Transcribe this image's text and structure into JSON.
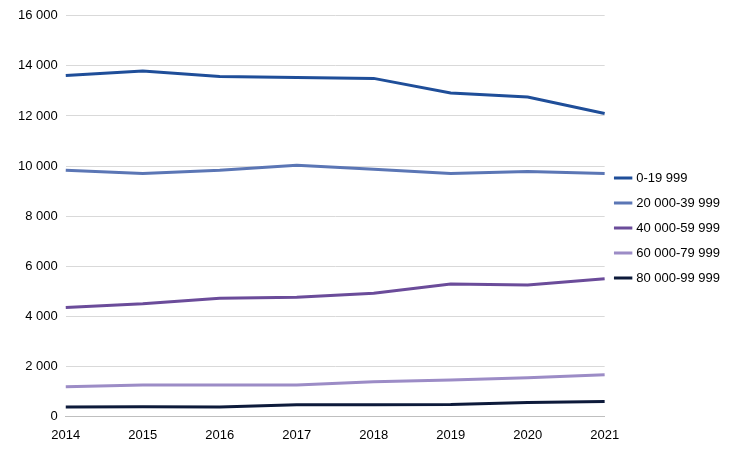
{
  "chart_data": {
    "type": "line",
    "categories": [
      "2014",
      "2015",
      "2016",
      "2017",
      "2018",
      "2019",
      "2020",
      "2021"
    ],
    "series": [
      {
        "name": "0-19 999",
        "color": "#1f4e99",
        "values": [
          13620,
          13800,
          13580,
          13540,
          13500,
          12920,
          12760,
          12100
        ]
      },
      {
        "name": "20 000-39 999",
        "color": "#5b76b5",
        "values": [
          9830,
          9700,
          9830,
          10030,
          9870,
          9700,
          9780,
          9700
        ]
      },
      {
        "name": "40 000-59 999",
        "color": "#6b4c9a",
        "values": [
          4350,
          4500,
          4720,
          4760,
          4920,
          5290,
          5250,
          5500
        ]
      },
      {
        "name": "60 000-79 999",
        "color": "#9c8cc6",
        "values": [
          1180,
          1250,
          1250,
          1250,
          1380,
          1450,
          1540,
          1660
        ]
      },
      {
        "name": "80 000-99 999",
        "color": "#0d1a3a",
        "values": [
          380,
          390,
          380,
          470,
          470,
          480,
          560,
          600
        ]
      }
    ],
    "ylim": [
      0,
      16000
    ],
    "yticks": [
      0,
      {
        "value": 2000,
        "label": "2 000"
      },
      {
        "value": 4000,
        "label": "4 000"
      },
      {
        "value": 6000,
        "label": "6 000"
      },
      {
        "value": 8000,
        "label": "8 000"
      },
      {
        "value": 10000,
        "label": "10 000"
      },
      {
        "value": 12000,
        "label": "12 000"
      },
      {
        "value": 14000,
        "label": "14 000"
      },
      {
        "value": 16000,
        "label": "16 000"
      }
    ],
    "grid": true,
    "legend": "right"
  }
}
